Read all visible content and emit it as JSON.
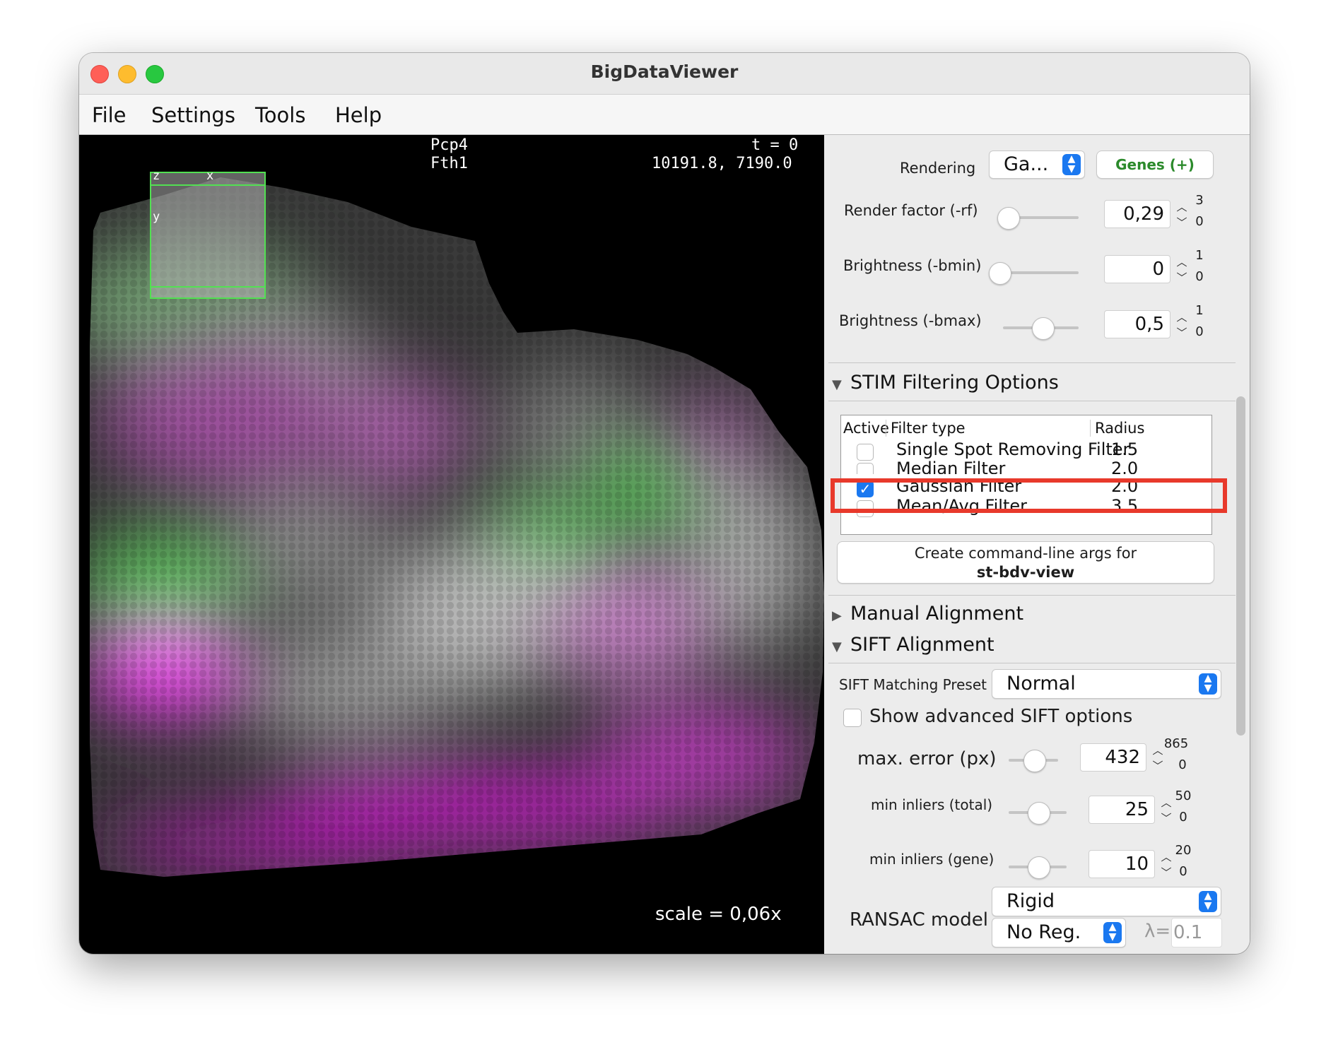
{
  "window": {
    "title": "BigDataViewer"
  },
  "menu": [
    "File",
    "Settings",
    "Tools",
    "Help"
  ],
  "viewer": {
    "genes": [
      "Pcp4",
      "Fth1"
    ],
    "time": "t = 0",
    "coords": "10191.8, 7190.0",
    "scale": "scale = 0,06x",
    "nav_labels": {
      "z": "z",
      "x": "x",
      "y": "y"
    },
    "colors": {
      "channel1": "#ff3cff",
      "channel2": "#5cd65c"
    }
  },
  "panel": {
    "rendering": {
      "label": "Rendering",
      "value": "Ga...",
      "genes_button": "Genes (+)"
    },
    "render_factor": {
      "label": "Render factor (-rf)",
      "value": "0,29",
      "max": "3",
      "min": "0",
      "position": 0.1
    },
    "bmin": {
      "label": "Brightness (-bmin)",
      "value": "0",
      "max": "1",
      "min": "0",
      "position": 0.0
    },
    "bmax": {
      "label": "Brightness (-bmax)",
      "value": "0,5",
      "max": "1",
      "min": "0",
      "position": 0.5
    },
    "stim_filtering": {
      "title": "STIM Filtering Options",
      "expanded": true
    },
    "filter_table": {
      "headers": [
        "Active",
        "Filter type",
        "Radius"
      ],
      "rows": [
        {
          "name": "Single Spot Removing Filter",
          "radius": "1.5",
          "active": false
        },
        {
          "name": "Median Filter",
          "radius": "2.0",
          "active": false
        },
        {
          "name": "Gaussian Filter",
          "radius": "2.0",
          "active": true
        },
        {
          "name": "Mean/Avg Filter",
          "radius": "3.5",
          "active": false
        }
      ]
    },
    "cmd_button": {
      "line1": "Create command-line args for",
      "line2": "st-bdv-view"
    },
    "manual_alignment": {
      "title": "Manual Alignment",
      "expanded": false
    },
    "sift_alignment": {
      "title": "SIFT Alignment",
      "expanded": true
    },
    "sift_preset": {
      "label": "SIFT Matching Preset",
      "value": "Normal"
    },
    "show_advanced": {
      "label": "Show advanced SIFT options",
      "checked": false
    },
    "max_error": {
      "label": "max. error (px)",
      "value": "432",
      "max": "865",
      "min": "0",
      "position": 0.5
    },
    "min_inliers_total": {
      "label": "min inliers (total)",
      "value": "25",
      "max": "50",
      "min": "0",
      "position": 0.5
    },
    "min_inliers_gene": {
      "label": "min inliers (gene)",
      "value": "10",
      "max": "20",
      "min": "0",
      "position": 0.5
    },
    "ransac": {
      "label": "RANSAC model",
      "model": "Rigid",
      "regularization": "No Reg.",
      "lambda_label": "λ=",
      "lambda": "0.1"
    }
  }
}
